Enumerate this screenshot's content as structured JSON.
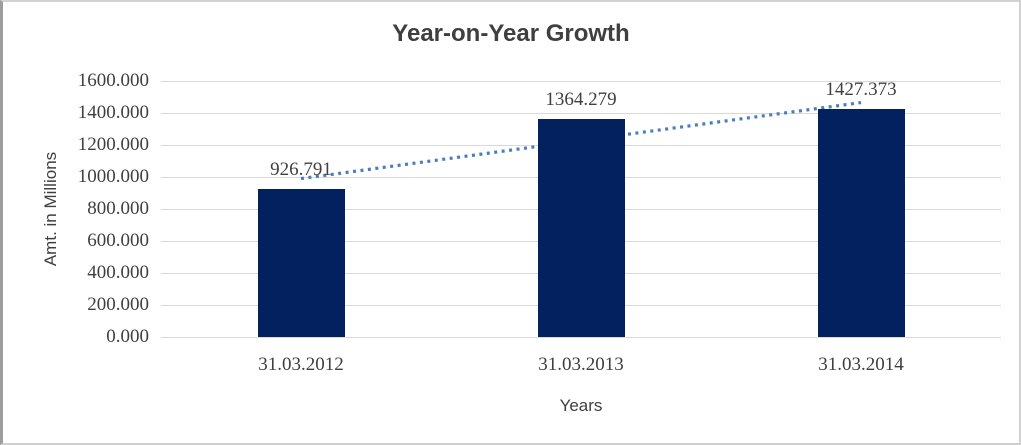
{
  "window": {
    "background": "#ffffff",
    "border_color": "#d2d2d2"
  },
  "chart_data": {
    "type": "bar",
    "title": "Year-on-Year Growth",
    "categories": [
      "31.03.2012",
      "31.03.2013",
      "31.03.2014"
    ],
    "values": [
      926.791,
      1364.279,
      1427.373
    ],
    "data_labels": [
      "926.791",
      "1364.279",
      "1427.373"
    ],
    "xlabel": "Years",
    "ylabel": "Amt. in Millions",
    "ylim": [
      0,
      1600
    ],
    "ytick_interval": 200,
    "ytick_labels": [
      "1600.000",
      "1400.000",
      "1200.000",
      "1000.000",
      "800.000",
      "600.000",
      "400.000",
      "200.000",
      "0.000"
    ],
    "grid": true,
    "legend": "none",
    "bar_color": "#02215E",
    "gridline_color": "#D9D9D9",
    "text_color": "#3F3F3F",
    "trendline": {
      "type": "linear",
      "style": "dotted",
      "color": "#4A7EBB",
      "start_value": 990,
      "end_value": 1465
    }
  }
}
